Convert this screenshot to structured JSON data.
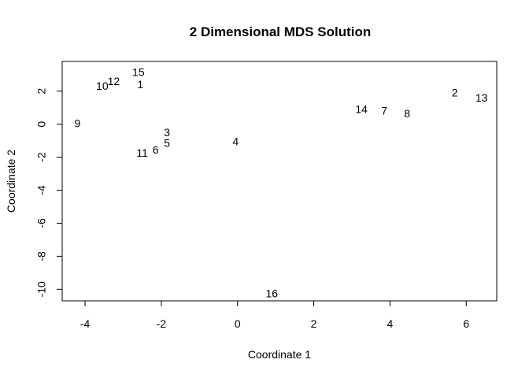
{
  "chart_data": {
    "type": "scatter",
    "title": "2 Dimensional MDS Solution",
    "xlabel": "Coordinate 1",
    "ylabel": "Coordinate 2",
    "xlim": [
      -4.6,
      6.8
    ],
    "ylim": [
      -10.7,
      3.8
    ],
    "xticks": [
      -4,
      -2,
      0,
      2,
      4,
      6
    ],
    "yticks": [
      -10,
      -8,
      -6,
      -4,
      -2,
      0,
      2
    ],
    "grid": false,
    "points": [
      {
        "label": "1",
        "x": -2.55,
        "y": 2.35
      },
      {
        "label": "2",
        "x": 5.7,
        "y": 1.85
      },
      {
        "label": "3",
        "x": -1.85,
        "y": -0.55
      },
      {
        "label": "4",
        "x": -0.05,
        "y": -1.1
      },
      {
        "label": "5",
        "x": -1.85,
        "y": -1.2
      },
      {
        "label": "6",
        "x": -2.15,
        "y": -1.6
      },
      {
        "label": "7",
        "x": 3.85,
        "y": 0.75
      },
      {
        "label": "8",
        "x": 4.45,
        "y": 0.6
      },
      {
        "label": "9",
        "x": -4.2,
        "y": 0.0
      },
      {
        "label": "10",
        "x": -3.55,
        "y": 2.25
      },
      {
        "label": "11",
        "x": -2.5,
        "y": -1.8
      },
      {
        "label": "12",
        "x": -3.25,
        "y": 2.55
      },
      {
        "label": "13",
        "x": 6.4,
        "y": 1.55
      },
      {
        "label": "14",
        "x": 3.25,
        "y": 0.85
      },
      {
        "label": "15",
        "x": -2.6,
        "y": 3.1
      },
      {
        "label": "16",
        "x": 0.9,
        "y": -10.3
      }
    ]
  }
}
